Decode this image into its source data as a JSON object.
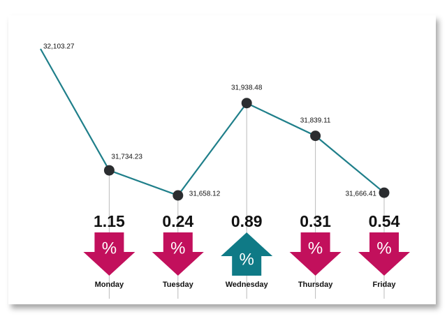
{
  "chart_data": {
    "type": "line",
    "categories": [
      null,
      "Monday",
      "Tuesday",
      "Wednesday",
      "Thursday",
      "Friday"
    ],
    "values": [
      32103.27,
      31734.23,
      31658.12,
      31938.48,
      31839.11,
      31666.41
    ],
    "value_labels": [
      "32,103.27",
      "31,734.23",
      "31,658.12",
      "31,938.48",
      "31,839.11",
      "31,666.41"
    ],
    "color": "#1f7f8a",
    "changes": [
      null,
      1.15,
      0.24,
      0.89,
      0.31,
      0.54
    ],
    "directions": [
      null,
      "down",
      "down",
      "up",
      "down",
      "down"
    ],
    "change_unit": "%",
    "up_color": "#0f7a86",
    "down_color": "#c2105c"
  }
}
